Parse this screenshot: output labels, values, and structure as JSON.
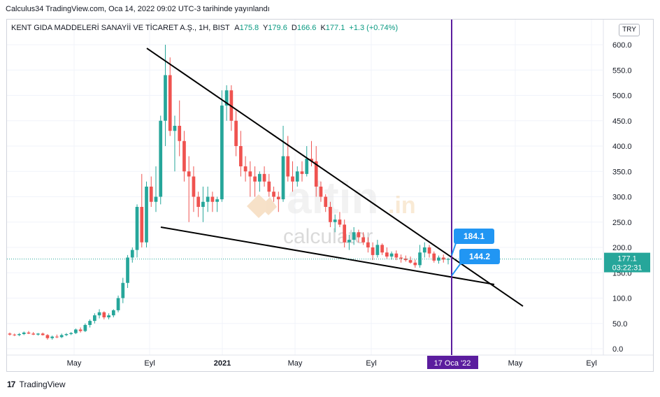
{
  "header": {
    "caption": "Calculus34 TradingView.com, Oca 14, 2022 09:02 UTC-3 tarihinde yayınlandı"
  },
  "legend": {
    "symbol": "KENT GIDA MADDELERİ SANAYİİ VE TİCARET A.Ş., 1H, BIST",
    "open_label": "A",
    "open": "175.8",
    "high_label": "Y",
    "high": "179.6",
    "low_label": "D",
    "low": "166.6",
    "close_label": "K",
    "close": "177.1",
    "change": "+1.3 (+0.74%)"
  },
  "currency": "TRY",
  "footer": {
    "brand": "TradingView",
    "logo": "tradingview-logo-icon"
  },
  "watermark": {
    "text1": "altin",
    "text2": ".in",
    "text3": "calculator"
  },
  "colors": {
    "up": "#26a69a",
    "down": "#ef5350",
    "accent": "#2196f3",
    "marker": "#5b1d9e",
    "price_line": "#26a69a"
  },
  "chart_data": {
    "type": "candlestick",
    "y_ticks": [
      "600.0",
      "550.0",
      "500.0",
      "450.0",
      "400.0",
      "350.0",
      "300.0",
      "250.0",
      "200.0",
      "150.0",
      "100.0",
      "50.0",
      "0.0"
    ],
    "ylim": [
      0,
      600
    ],
    "x_ticks": [
      "May",
      "Eyl",
      "2021",
      "May",
      "Eyl",
      "May",
      "Eyl"
    ],
    "x_marker_label": "17 Oca '22",
    "last_price": "177.1",
    "countdown": "03:22:31",
    "annotations": [
      {
        "label": "184.1",
        "value": 184.1
      },
      {
        "label": "144.2",
        "value": 144.2
      }
    ],
    "trendlines": [
      {
        "name": "upper-resistance",
        "from": [
          1,
          593
        ],
        "to": [
          18,
          85
        ]
      },
      {
        "name": "lower-support",
        "from": [
          4,
          240
        ],
        "to": [
          15.4,
          127
        ]
      }
    ],
    "candles_ohlc": [
      [
        30,
        32,
        26,
        28
      ],
      [
        28,
        30,
        25,
        27
      ],
      [
        27,
        31,
        25,
        29
      ],
      [
        29,
        34,
        27,
        32
      ],
      [
        32,
        35,
        29,
        30
      ],
      [
        30,
        33,
        27,
        28
      ],
      [
        28,
        31,
        26,
        30
      ],
      [
        30,
        32,
        26,
        27
      ],
      [
        27,
        29,
        18,
        21
      ],
      [
        21,
        26,
        18,
        24
      ],
      [
        24,
        28,
        21,
        23
      ],
      [
        23,
        30,
        21,
        27
      ],
      [
        27,
        31,
        25,
        29
      ],
      [
        29,
        33,
        27,
        31
      ],
      [
        31,
        40,
        29,
        38
      ],
      [
        38,
        42,
        32,
        35
      ],
      [
        35,
        50,
        33,
        47
      ],
      [
        47,
        58,
        42,
        55
      ],
      [
        55,
        70,
        50,
        66
      ],
      [
        66,
        78,
        60,
        72
      ],
      [
        72,
        74,
        58,
        62
      ],
      [
        62,
        70,
        58,
        66
      ],
      [
        66,
        78,
        62,
        76
      ],
      [
        76,
        105,
        72,
        100
      ],
      [
        100,
        140,
        90,
        130
      ],
      [
        130,
        185,
        120,
        180
      ],
      [
        180,
        200,
        170,
        195
      ],
      [
        195,
        285,
        180,
        280
      ],
      [
        280,
        345,
        200,
        210
      ],
      [
        210,
        330,
        200,
        320
      ],
      [
        320,
        340,
        280,
        290
      ],
      [
        290,
        360,
        270,
        300
      ],
      [
        300,
        460,
        285,
        450
      ],
      [
        450,
        600,
        400,
        540
      ],
      [
        540,
        575,
        420,
        430
      ],
      [
        430,
        460,
        350,
        440
      ],
      [
        440,
        490,
        380,
        410
      ],
      [
        410,
        430,
        330,
        350
      ],
      [
        350,
        380,
        250,
        340
      ],
      [
        340,
        360,
        270,
        300
      ],
      [
        300,
        310,
        260,
        280
      ],
      [
        280,
        320,
        250,
        290
      ],
      [
        290,
        320,
        270,
        300
      ],
      [
        300,
        310,
        270,
        290
      ],
      [
        290,
        300,
        270,
        295
      ],
      [
        295,
        510,
        290,
        480
      ],
      [
        480,
        520,
        450,
        510
      ],
      [
        510,
        520,
        430,
        450
      ],
      [
        450,
        470,
        380,
        400
      ],
      [
        400,
        430,
        340,
        360
      ],
      [
        360,
        380,
        330,
        350
      ],
      [
        350,
        370,
        300,
        340
      ],
      [
        340,
        360,
        300,
        330
      ],
      [
        330,
        350,
        310,
        345
      ],
      [
        345,
        360,
        320,
        330
      ],
      [
        330,
        345,
        300,
        310
      ],
      [
        310,
        320,
        290,
        300
      ],
      [
        300,
        310,
        270,
        295
      ],
      [
        295,
        440,
        290,
        380
      ],
      [
        380,
        420,
        330,
        340
      ],
      [
        340,
        370,
        310,
        330
      ],
      [
        330,
        360,
        320,
        350
      ],
      [
        350,
        370,
        330,
        345
      ],
      [
        345,
        400,
        340,
        375
      ],
      [
        375,
        410,
        360,
        370
      ],
      [
        370,
        400,
        300,
        320
      ],
      [
        320,
        330,
        290,
        300
      ],
      [
        300,
        305,
        270,
        280
      ],
      [
        280,
        290,
        240,
        250
      ],
      [
        250,
        265,
        230,
        255
      ],
      [
        255,
        270,
        240,
        245
      ],
      [
        245,
        255,
        200,
        210
      ],
      [
        210,
        225,
        195,
        215
      ],
      [
        215,
        240,
        205,
        230
      ],
      [
        230,
        235,
        210,
        220
      ],
      [
        220,
        230,
        205,
        210
      ],
      [
        210,
        220,
        190,
        200
      ],
      [
        200,
        210,
        175,
        185
      ],
      [
        185,
        215,
        180,
        205
      ],
      [
        205,
        208,
        185,
        190
      ],
      [
        190,
        200,
        178,
        182
      ],
      [
        182,
        192,
        176,
        188
      ],
      [
        188,
        194,
        175,
        180
      ],
      [
        180,
        186,
        170,
        178
      ],
      [
        178,
        184,
        172,
        175
      ],
      [
        175,
        182,
        168,
        170
      ],
      [
        170,
        176,
        160,
        165
      ],
      [
        165,
        205,
        160,
        190
      ],
      [
        190,
        210,
        180,
        200
      ],
      [
        200,
        205,
        180,
        188
      ],
      [
        188,
        192,
        170,
        174
      ],
      [
        174,
        184,
        168,
        180
      ],
      [
        180,
        186,
        170,
        176
      ],
      [
        175.8,
        179.6,
        166.6,
        177.1
      ]
    ]
  }
}
